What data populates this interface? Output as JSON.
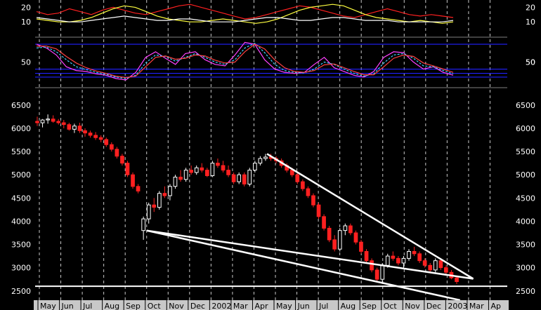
{
  "chart_data": [
    {
      "type": "line",
      "panel": "oscillator-top",
      "yticks": [
        20,
        10
      ],
      "right_ticks": [
        50
      ],
      "ylim": [
        0,
        25
      ],
      "series": [
        {
          "color": "#ff2020",
          "values": [
            17,
            15,
            16,
            19,
            17,
            15,
            18,
            20,
            18,
            16,
            15,
            17,
            19,
            21,
            22,
            20,
            18,
            16,
            14,
            12,
            13,
            15,
            17,
            19,
            21,
            20,
            18,
            16,
            14,
            13,
            15,
            17,
            19,
            17,
            15,
            14,
            15,
            14,
            13
          ]
        },
        {
          "color": "#ffff40",
          "values": [
            12,
            11,
            10,
            10,
            11,
            13,
            16,
            19,
            21,
            20,
            17,
            14,
            12,
            11,
            10,
            10,
            11,
            12,
            11,
            10,
            9,
            10,
            12,
            15,
            18,
            20,
            21,
            22,
            21,
            18,
            15,
            13,
            12,
            11,
            10,
            11,
            10,
            9,
            10
          ]
        },
        {
          "color": "#ffffff",
          "values": [
            13,
            12,
            11,
            10,
            10,
            11,
            12,
            13,
            14,
            13,
            12,
            11,
            11,
            12,
            12,
            11,
            10,
            10,
            10,
            11,
            12,
            13,
            13,
            12,
            11,
            11,
            12,
            13,
            13,
            12,
            11,
            11,
            11,
            10,
            10,
            10,
            10,
            10,
            11
          ]
        }
      ]
    },
    {
      "type": "line",
      "panel": "oscillator-middle",
      "yticks": [
        50
      ],
      "right_ticks": [
        50
      ],
      "ylim": [
        0,
        100
      ],
      "hlines": [
        88,
        35,
        26,
        18
      ],
      "series": [
        {
          "color": "#ff40ff",
          "values": [
            88,
            80,
            65,
            40,
            32,
            30,
            25,
            22,
            15,
            12,
            28,
            60,
            72,
            58,
            45,
            68,
            72,
            55,
            45,
            42,
            65,
            92,
            88,
            55,
            35,
            28,
            26,
            28,
            45,
            60,
            38,
            30,
            22,
            18,
            30,
            60,
            72,
            70,
            50,
            35,
            40,
            28,
            22
          ]
        },
        {
          "color": "#40d0ff",
          "dash": true,
          "values": [
            80,
            82,
            72,
            55,
            40,
            34,
            28,
            24,
            18,
            15,
            22,
            48,
            65,
            62,
            52,
            60,
            68,
            60,
            50,
            45,
            55,
            80,
            90,
            70,
            45,
            32,
            28,
            27,
            35,
            50,
            45,
            35,
            26,
            20,
            25,
            48,
            65,
            68,
            58,
            42,
            40,
            32,
            25
          ]
        },
        {
          "color": "#ff4040",
          "values": [
            84,
            84,
            78,
            62,
            48,
            38,
            31,
            26,
            20,
            17,
            20,
            40,
            60,
            63,
            56,
            58,
            65,
            63,
            54,
            48,
            50,
            72,
            88,
            78,
            55,
            38,
            30,
            28,
            32,
            44,
            46,
            38,
            30,
            23,
            23,
            40,
            58,
            65,
            62,
            48,
            42,
            35,
            28
          ]
        }
      ]
    },
    {
      "type": "candlestick",
      "panel": "price",
      "yticks": [
        6500,
        6000,
        5500,
        5000,
        4500,
        4000,
        3500,
        3000,
        2500
      ],
      "ylim": [
        2300,
        6800
      ],
      "x_labels": [
        "May",
        "Jun",
        "Jul",
        "Aug",
        "Sep",
        "Oct",
        "Nov",
        "Dec",
        "2002",
        "Mar",
        "Apr",
        "May",
        "Jun",
        "Jul",
        "Aug",
        "Sep",
        "Oct",
        "Nov",
        "Dec",
        "2003",
        "Mar",
        "Ap"
      ],
      "candles": [
        [
          6150,
          6250,
          6050,
          6120
        ],
        [
          6120,
          6200,
          6020,
          6180
        ],
        [
          6180,
          6300,
          6100,
          6200
        ],
        [
          6200,
          6280,
          6120,
          6150
        ],
        [
          6150,
          6200,
          6080,
          6120
        ],
        [
          6120,
          6180,
          6000,
          6080
        ],
        [
          6080,
          6120,
          5950,
          5980
        ],
        [
          5980,
          6100,
          5900,
          6050
        ],
        [
          6050,
          6120,
          5900,
          5950
        ],
        [
          5950,
          6000,
          5820,
          5900
        ],
        [
          5900,
          5950,
          5800,
          5850
        ],
        [
          5850,
          5920,
          5750,
          5800
        ],
        [
          5800,
          5850,
          5700,
          5760
        ],
        [
          5760,
          5800,
          5600,
          5650
        ],
        [
          5650,
          5700,
          5500,
          5550
        ],
        [
          5550,
          5600,
          5350,
          5400
        ],
        [
          5400,
          5450,
          5200,
          5250
        ],
        [
          5250,
          5300,
          4950,
          5000
        ],
        [
          5000,
          5050,
          4700,
          4750
        ],
        [
          4750,
          4800,
          4600,
          4650
        ],
        [
          3800,
          4100,
          3600,
          4050
        ],
        [
          4050,
          4400,
          3950,
          4350
        ],
        [
          4350,
          4500,
          4200,
          4300
        ],
        [
          4300,
          4650,
          4250,
          4600
        ],
        [
          4600,
          4750,
          4500,
          4550
        ],
        [
          4550,
          4800,
          4450,
          4750
        ],
        [
          4750,
          5000,
          4700,
          4950
        ],
        [
          4950,
          5100,
          4850,
          4900
        ],
        [
          4900,
          5150,
          4850,
          5100
        ],
        [
          5100,
          5200,
          5000,
          5050
        ],
        [
          5050,
          5200,
          5000,
          5150
        ],
        [
          5150,
          5250,
          5050,
          5100
        ],
        [
          5100,
          5150,
          4950,
          4980
        ],
        [
          4980,
          5300,
          4950,
          5250
        ],
        [
          5250,
          5350,
          5150,
          5200
        ],
        [
          5200,
          5300,
          5050,
          5100
        ],
        [
          5100,
          5200,
          4950,
          5000
        ],
        [
          5000,
          5050,
          4800,
          4850
        ],
        [
          4850,
          5050,
          4800,
          5000
        ],
        [
          5000,
          5050,
          4750,
          4800
        ],
        [
          4800,
          5150,
          4750,
          5100
        ],
        [
          5100,
          5300,
          5050,
          5250
        ],
        [
          5250,
          5400,
          5200,
          5350
        ],
        [
          5350,
          5450,
          5300,
          5380
        ],
        [
          5380,
          5450,
          5300,
          5350
        ],
        [
          5350,
          5400,
          5250,
          5300
        ],
        [
          5300,
          5350,
          5150,
          5200
        ],
        [
          5200,
          5250,
          5050,
          5100
        ],
        [
          5100,
          5150,
          4950,
          5000
        ],
        [
          5000,
          5050,
          4800,
          4850
        ],
        [
          4850,
          4900,
          4650,
          4700
        ],
        [
          4700,
          4750,
          4500,
          4550
        ],
        [
          4550,
          4600,
          4300,
          4350
        ],
        [
          4350,
          4400,
          4050,
          4100
        ],
        [
          4100,
          4150,
          3800,
          3850
        ],
        [
          3850,
          3900,
          3550,
          3600
        ],
        [
          3600,
          3700,
          3350,
          3400
        ],
        [
          3400,
          3850,
          3350,
          3800
        ],
        [
          3800,
          3950,
          3700,
          3900
        ],
        [
          3900,
          3950,
          3700,
          3750
        ],
        [
          3750,
          3800,
          3500,
          3550
        ],
        [
          3550,
          3600,
          3300,
          3350
        ],
        [
          3350,
          3400,
          3100,
          3150
        ],
        [
          3150,
          3200,
          2900,
          2950
        ],
        [
          2950,
          3000,
          2700,
          2750
        ],
        [
          2750,
          3100,
          2650,
          3050
        ],
        [
          3050,
          3300,
          3000,
          3250
        ],
        [
          3250,
          3350,
          3150,
          3200
        ],
        [
          3200,
          3250,
          3050,
          3100
        ],
        [
          3100,
          3250,
          3000,
          3200
        ],
        [
          3200,
          3400,
          3150,
          3350
        ],
        [
          3350,
          3450,
          3250,
          3300
        ],
        [
          3300,
          3350,
          3100,
          3150
        ],
        [
          3150,
          3200,
          3000,
          3050
        ],
        [
          3050,
          3100,
          2900,
          2950
        ],
        [
          2950,
          3200,
          2900,
          3150
        ],
        [
          3150,
          3200,
          2950,
          3000
        ],
        [
          3000,
          3050,
          2850,
          2900
        ],
        [
          2900,
          2950,
          2750,
          2780
        ],
        [
          2780,
          2800,
          2650,
          2700
        ]
      ],
      "trendlines": [
        {
          "from": [
            0.236,
            3800
          ],
          "to": [
            0.928,
            2760
          ]
        },
        {
          "from": [
            0.236,
            3800
          ],
          "to": [
            0.9,
            2300
          ]
        },
        {
          "from": [
            0.491,
            5450
          ],
          "to": [
            0.928,
            2760
          ]
        }
      ],
      "hline": 2600
    }
  ],
  "x_axis": {
    "months": [
      "May",
      "Jun",
      "Jul",
      "Aug",
      "Sep",
      "Oct",
      "Nov",
      "Dec",
      "2002",
      "Mar",
      "Apr",
      "May",
      "Jun",
      "Jul",
      "Aug",
      "Sep",
      "Oct",
      "Nov",
      "Dec",
      "2003",
      "Mar",
      "Ap"
    ]
  }
}
